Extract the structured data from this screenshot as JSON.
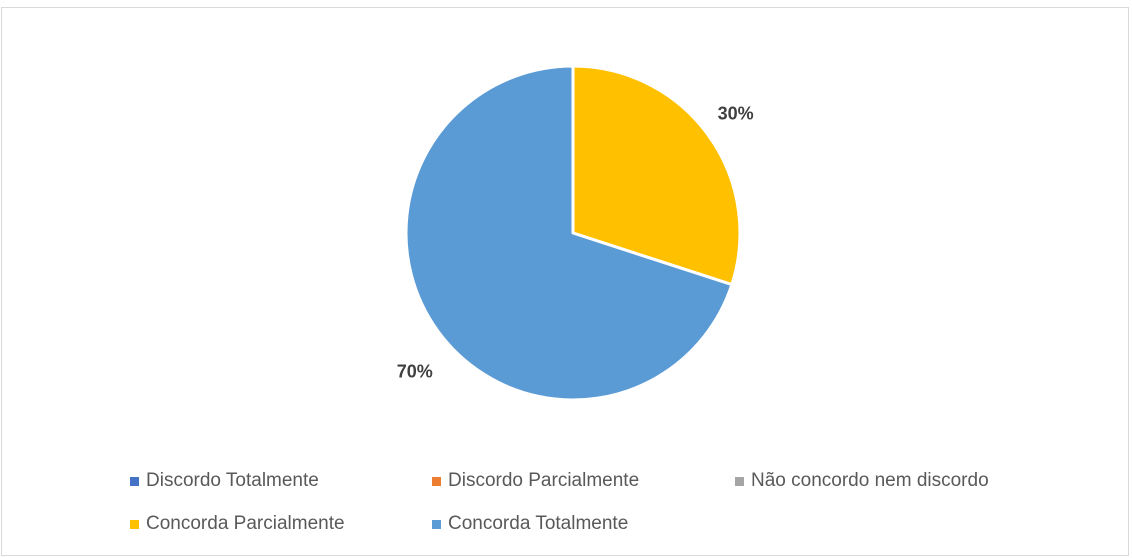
{
  "chart_data": {
    "type": "pie",
    "categories": [
      "Discordo Totalmente",
      "Discordo Parcialmente",
      "Não concordo nem discordo",
      "Concorda Parcialmente",
      "Concorda Totalmente"
    ],
    "values": [
      0,
      0,
      0,
      30,
      70
    ],
    "data_labels": [
      "",
      "",
      "",
      "30%",
      "70%"
    ],
    "colors": [
      "#4472C4",
      "#ED7D31",
      "#A5A5A5",
      "#FFC000",
      "#5B9BD5"
    ],
    "legend_position": "bottom",
    "start_angle": "top",
    "direction": "clockwise"
  },
  "legend": {
    "items": [
      {
        "label": "Discordo Totalmente",
        "color": "#4472C4"
      },
      {
        "label": "Discordo Parcialmente",
        "color": "#ED7D31"
      },
      {
        "label": "Não concordo nem discordo",
        "color": "#A5A5A5"
      },
      {
        "label": "Concorda Parcialmente",
        "color": "#FFC000"
      },
      {
        "label": "Concorda Totalmente",
        "color": "#5B9BD5"
      }
    ]
  }
}
